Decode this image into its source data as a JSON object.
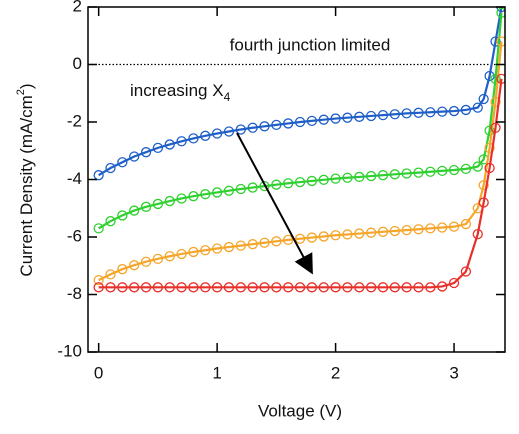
{
  "chart_data": {
    "type": "line",
    "xlabel": "Voltage (V)",
    "ylabel": {
      "text": "Current Density (mA/cm",
      "sup": "2",
      "end": ")"
    },
    "annotations": [
      {
        "text": "fourth junction limited"
      },
      {
        "text": "increasing X",
        "subscript": "4"
      }
    ],
    "x": [
      0,
      0.1,
      0.2,
      0.3,
      0.4,
      0.5,
      0.6,
      0.7,
      0.8,
      0.9,
      1.0,
      1.1,
      1.2,
      1.3,
      1.4,
      1.5,
      1.6,
      1.7,
      1.8,
      1.9,
      2.0,
      2.1,
      2.2,
      2.3,
      2.4,
      2.5,
      2.6,
      2.7,
      2.8,
      2.9,
      3.0,
      3.1,
      3.2,
      3.25,
      3.3,
      3.35,
      3.4
    ],
    "series": [
      {
        "name": "blue",
        "color": "#1f5fc8",
        "values": [
          -3.85,
          -3.6,
          -3.4,
          -3.2,
          -3.05,
          -2.9,
          -2.78,
          -2.67,
          -2.57,
          -2.48,
          -2.4,
          -2.33,
          -2.26,
          -2.2,
          -2.15,
          -2.1,
          -2.05,
          -2.0,
          -1.96,
          -1.92,
          -1.88,
          -1.85,
          -1.82,
          -1.79,
          -1.76,
          -1.73,
          -1.7,
          -1.68,
          -1.66,
          -1.64,
          -1.62,
          -1.58,
          -1.5,
          -1.2,
          -0.4,
          0.8,
          2
        ]
      },
      {
        "name": "green",
        "color": "#2fd02f",
        "values": [
          -5.7,
          -5.45,
          -5.25,
          -5.08,
          -4.95,
          -4.85,
          -4.75,
          -4.66,
          -4.58,
          -4.51,
          -4.45,
          -4.39,
          -4.33,
          -4.28,
          -4.23,
          -4.18,
          -4.13,
          -4.09,
          -4.05,
          -4.01,
          -3.97,
          -3.94,
          -3.91,
          -3.88,
          -3.85,
          -3.82,
          -3.79,
          -3.76,
          -3.73,
          -3.7,
          -3.67,
          -3.63,
          -3.55,
          -3.3,
          -2.3,
          -0.5,
          1.8
        ]
      },
      {
        "name": "orange",
        "color": "#f5a52a",
        "values": [
          -7.5,
          -7.3,
          -7.12,
          -6.98,
          -6.86,
          -6.76,
          -6.67,
          -6.59,
          -6.52,
          -6.46,
          -6.4,
          -6.35,
          -6.3,
          -6.25,
          -6.2,
          -6.15,
          -6.1,
          -6.06,
          -6.02,
          -5.98,
          -5.94,
          -5.91,
          -5.88,
          -5.85,
          -5.82,
          -5.79,
          -5.76,
          -5.73,
          -5.7,
          -5.67,
          -5.64,
          -5.55,
          -5.0,
          -4.2,
          -2.9,
          -1.3,
          0.8
        ]
      },
      {
        "name": "red",
        "color": "#e8302a",
        "values": [
          -7.75,
          -7.75,
          -7.75,
          -7.75,
          -7.75,
          -7.75,
          -7.75,
          -7.75,
          -7.75,
          -7.75,
          -7.75,
          -7.75,
          -7.75,
          -7.75,
          -7.75,
          -7.75,
          -7.75,
          -7.75,
          -7.75,
          -7.75,
          -7.75,
          -7.75,
          -7.75,
          -7.75,
          -7.75,
          -7.75,
          -7.75,
          -7.75,
          -7.75,
          -7.72,
          -7.6,
          -7.2,
          -5.9,
          -4.8,
          -3.6,
          -2.2,
          -0.5
        ]
      }
    ],
    "xlim": [
      -0.09,
      3.43
    ],
    "xticks": [
      0,
      1,
      2,
      3
    ],
    "ylim": [
      -10,
      2
    ],
    "yticks": [
      -10,
      -8,
      -6,
      -4,
      -2,
      0,
      2
    ],
    "hline": 0
  }
}
